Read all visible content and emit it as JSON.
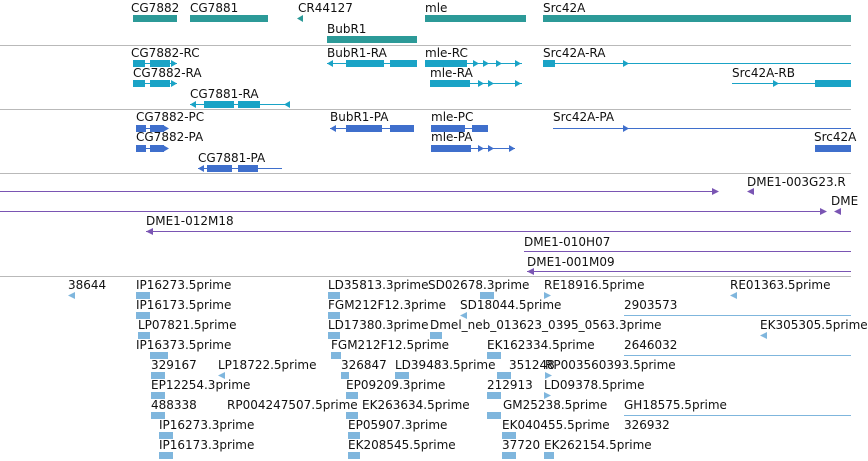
{
  "colors": {
    "gene": "#2c9a98",
    "transcript": "#1aa3c6",
    "protein": "#3f6fcc",
    "genomic_clone": "#7a55b3",
    "est": "#7fb6dd",
    "separator": "#b9b9b9"
  },
  "tracks": {
    "genes": {
      "features": [
        {
          "label": "CG7882",
          "strand": "-"
        },
        {
          "label": "CG7881",
          "strand": "-"
        },
        {
          "label": "CR44127",
          "strand": "-"
        },
        {
          "label": "mle",
          "strand": "+"
        },
        {
          "label": "Src42A",
          "strand": "+"
        },
        {
          "label": "BubR1",
          "strand": "-"
        }
      ]
    },
    "transcripts": {
      "features": [
        {
          "label": "CG7882-RC",
          "strand": "+"
        },
        {
          "label": "BubR1-RA",
          "strand": "-"
        },
        {
          "label": "mle-RC",
          "strand": "+"
        },
        {
          "label": "Src42A-RA",
          "strand": "+"
        },
        {
          "label": "CG7882-RA",
          "strand": "+"
        },
        {
          "label": "mle-RA",
          "strand": "+"
        },
        {
          "label": "Src42A-RB",
          "strand": "+"
        },
        {
          "label": "CG7881-RA",
          "strand": "-"
        }
      ]
    },
    "proteins": {
      "features": [
        {
          "label": "CG7882-PC",
          "strand": "+"
        },
        {
          "label": "BubR1-PA",
          "strand": "-"
        },
        {
          "label": "mle-PC",
          "strand": "+"
        },
        {
          "label": "Src42A-PA",
          "strand": "+"
        },
        {
          "label": "CG7882-PA",
          "strand": "+"
        },
        {
          "label": "mle-PA",
          "strand": "+"
        },
        {
          "label": "Src42A",
          "strand": "+"
        },
        {
          "label": "CG7881-PA",
          "strand": "-"
        }
      ]
    },
    "genomic_clones": {
      "features": [
        {
          "label": "",
          "strand": "+"
        },
        {
          "label": "DME1-003G23.R",
          "strand": "-"
        },
        {
          "label": "DME",
          "strand": "+"
        },
        {
          "label": "DME1-012M18",
          "strand": "-"
        },
        {
          "label": "DME1-010H07",
          "strand": "+"
        },
        {
          "label": "DME1-001M09",
          "strand": "-"
        }
      ]
    },
    "ests": {
      "features": [
        {
          "label": "38644",
          "strand": "-"
        },
        {
          "label": "IP16273.5prime",
          "strand": "+"
        },
        {
          "label": "LD35813.3prime",
          "strand": "+"
        },
        {
          "label": "SD02678.3prime",
          "strand": "-"
        },
        {
          "label": "RE18916.5prime",
          "strand": "+"
        },
        {
          "label": "RE01363.5prime",
          "strand": "-"
        },
        {
          "label": "IP16173.5prime",
          "strand": "+"
        },
        {
          "label": "FGM212F12.3prime",
          "strand": "+"
        },
        {
          "label": "SD18044.5prime",
          "strand": "-"
        },
        {
          "label": "2903573",
          "strand": "+"
        },
        {
          "label": "LP07821.5prime",
          "strand": "+"
        },
        {
          "label": "LD17380.3prime",
          "strand": "+"
        },
        {
          "label": "Dmel_neb_013623_0395_0563.3prime",
          "strand": "+"
        },
        {
          "label": "EK305305.5prime",
          "strand": "-"
        },
        {
          "label": "IP16373.5prime",
          "strand": "+"
        },
        {
          "label": "FGM212F12.5prime",
          "strand": "+"
        },
        {
          "label": "EK162334.5prime",
          "strand": "+"
        },
        {
          "label": "2646032",
          "strand": "+"
        },
        {
          "label": "329167",
          "strand": "+"
        },
        {
          "label": "LP18722.5prime",
          "strand": "-"
        },
        {
          "label": "326847",
          "strand": "+"
        },
        {
          "label": "LD39483.5prime",
          "strand": "+"
        },
        {
          "label": "351248",
          "strand": "+"
        },
        {
          "label": "RP003560393.5prime",
          "strand": "+"
        },
        {
          "label": "EP12254.3prime",
          "strand": "+"
        },
        {
          "label": "EP09209.3prime",
          "strand": "+"
        },
        {
          "label": "212913",
          "strand": "+"
        },
        {
          "label": "LD09378.5prime",
          "strand": "+"
        },
        {
          "label": "488338",
          "strand": "+"
        },
        {
          "label": "RP004247507.5prime",
          "strand": "+"
        },
        {
          "label": "EK263634.5prime",
          "strand": "+"
        },
        {
          "label": "GM25238.5prime",
          "strand": "+"
        },
        {
          "label": "GH18575.5prime",
          "strand": "+"
        },
        {
          "label": "IP16273.3prime",
          "strand": "+"
        },
        {
          "label": "EP05907.3prime",
          "strand": "+"
        },
        {
          "label": "EK040455.5prime",
          "strand": "+"
        },
        {
          "label": "326932",
          "strand": "+"
        },
        {
          "label": "IP16173.3prime",
          "strand": "+"
        },
        {
          "label": "EK208545.5prime",
          "strand": "+"
        },
        {
          "label": "37720",
          "strand": "+"
        },
        {
          "label": "EK262154.5prime",
          "strand": "+"
        }
      ]
    }
  }
}
